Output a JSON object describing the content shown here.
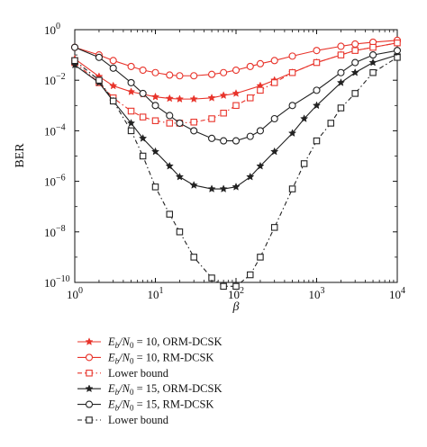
{
  "chart_data": {
    "type": "line",
    "xlabel": "β",
    "ylabel": "BER",
    "xscale": "log",
    "yscale": "log",
    "xlim": [
      1,
      10000
    ],
    "ylim": [
      1e-10,
      1
    ],
    "grid": false,
    "legend_placement": "below",
    "x_ticks": [
      {
        "value": 1,
        "mant": "10",
        "exp": "0"
      },
      {
        "value": 10,
        "mant": "10",
        "exp": "1"
      },
      {
        "value": 100,
        "mant": "10",
        "exp": "2"
      },
      {
        "value": 1000,
        "mant": "10",
        "exp": "3"
      },
      {
        "value": 10000,
        "mant": "10",
        "exp": "4"
      }
    ],
    "y_ticks": [
      {
        "value": 1e-10,
        "mant": "10",
        "exp": "−10"
      },
      {
        "value": 1e-08,
        "mant": "10",
        "exp": "−8"
      },
      {
        "value": 1e-06,
        "mant": "10",
        "exp": "−6"
      },
      {
        "value": 0.0001,
        "mant": "10",
        "exp": "−4"
      },
      {
        "value": 0.01,
        "mant": "10",
        "exp": "−2"
      },
      {
        "value": 1,
        "mant": "10",
        "exp": "0"
      }
    ],
    "series": [
      {
        "legend": {
          "pre": "E",
          "sub1": "b",
          "mid": "/N",
          "sub2": "0",
          "post": " = 10, ORM-DCSK"
        },
        "color": "#e8332a",
        "marker": "star",
        "line": "solid",
        "x": [
          1,
          2,
          3,
          5,
          7,
          10,
          15,
          20,
          30,
          50,
          70,
          100,
          200,
          300,
          500,
          1000,
          2000,
          3000,
          5000,
          10000
        ],
        "y": [
          0.07,
          0.014,
          0.006,
          0.0035,
          0.0028,
          0.0022,
          0.0019,
          0.0018,
          0.0018,
          0.002,
          0.0025,
          0.003,
          0.006,
          0.01,
          0.02,
          0.05,
          0.1,
          0.15,
          0.2,
          0.3
        ]
      },
      {
        "legend": {
          "pre": "E",
          "sub1": "b",
          "mid": "/N",
          "sub2": "0",
          "post": " = 10, RM-DCSK"
        },
        "color": "#e8332a",
        "marker": "circle",
        "line": "solid",
        "x": [
          1,
          2,
          3,
          5,
          7,
          10,
          15,
          20,
          30,
          50,
          70,
          100,
          150,
          200,
          300,
          500,
          1000,
          2000,
          3000,
          5000,
          10000
        ],
        "y": [
          0.2,
          0.1,
          0.06,
          0.035,
          0.025,
          0.02,
          0.016,
          0.015,
          0.015,
          0.017,
          0.02,
          0.025,
          0.035,
          0.045,
          0.06,
          0.09,
          0.15,
          0.22,
          0.27,
          0.32,
          0.38
        ]
      },
      {
        "legend": {
          "pre": "Lower bound",
          "sub1": "",
          "mid": "",
          "sub2": "",
          "post": ""
        },
        "color": "#e8332a",
        "marker": "square",
        "line": "dashdot",
        "x": [
          1,
          2,
          3,
          5,
          7,
          10,
          15,
          20,
          30,
          50,
          70,
          100,
          150,
          200,
          300,
          500,
          1000,
          2000,
          3000,
          5000,
          10000
        ],
        "y": [
          0.05,
          0.008,
          0.002,
          0.0006,
          0.00035,
          0.00025,
          0.0002,
          0.0002,
          0.00022,
          0.0003,
          0.0005,
          0.001,
          0.002,
          0.004,
          0.008,
          0.02,
          0.05,
          0.1,
          0.15,
          0.2,
          0.3
        ]
      },
      {
        "legend": {
          "pre": "E",
          "sub1": "b",
          "mid": "/N",
          "sub2": "0",
          "post": " = 15, ORM-DCSK"
        },
        "color": "#222222",
        "marker": "star",
        "line": "solid",
        "x": [
          1,
          2,
          3,
          5,
          7,
          10,
          15,
          20,
          30,
          50,
          70,
          100,
          150,
          200,
          300,
          500,
          700,
          1000,
          2000,
          3000,
          5000,
          10000
        ],
        "y": [
          0.04,
          0.008,
          0.0015,
          0.0002,
          5e-05,
          1.5e-05,
          4e-06,
          1.5e-06,
          7e-07,
          5e-07,
          5e-07,
          6e-07,
          1.5e-06,
          4e-06,
          1.5e-05,
          8e-05,
          0.0003,
          0.001,
          0.008,
          0.02,
          0.05,
          0.1
        ]
      },
      {
        "legend": {
          "pre": "E",
          "sub1": "b",
          "mid": "/N",
          "sub2": "0",
          "post": " = 15, RM-DCSK"
        },
        "color": "#222222",
        "marker": "circle",
        "line": "solid",
        "x": [
          1,
          2,
          3,
          5,
          7,
          10,
          15,
          20,
          30,
          50,
          70,
          100,
          150,
          200,
          300,
          500,
          1000,
          2000,
          3000,
          5000,
          10000
        ],
        "y": [
          0.2,
          0.08,
          0.03,
          0.008,
          0.003,
          0.001,
          0.0004,
          0.0002,
          0.0001,
          5e-05,
          4e-05,
          4e-05,
          6e-05,
          0.0001,
          0.0003,
          0.001,
          0.004,
          0.02,
          0.05,
          0.1,
          0.15
        ]
      },
      {
        "legend": {
          "pre": "Lower bound",
          "sub1": "",
          "mid": "",
          "sub2": "",
          "post": ""
        },
        "color": "#222222",
        "marker": "square",
        "line": "dashdot",
        "x": [
          1,
          2,
          3,
          5,
          7,
          10,
          15,
          20,
          30,
          50,
          70,
          100,
          150,
          200,
          300,
          500,
          700,
          1000,
          1500,
          2000,
          3000,
          5000,
          10000
        ],
        "y": [
          0.06,
          0.01,
          0.0015,
          0.0001,
          1e-05,
          6e-07,
          5e-08,
          1e-08,
          1e-09,
          1.5e-10,
          7e-11,
          7e-11,
          2e-10,
          1e-09,
          1.5e-08,
          5e-07,
          5e-06,
          4e-05,
          0.0002,
          0.0008,
          0.003,
          0.02,
          0.08
        ]
      }
    ]
  }
}
